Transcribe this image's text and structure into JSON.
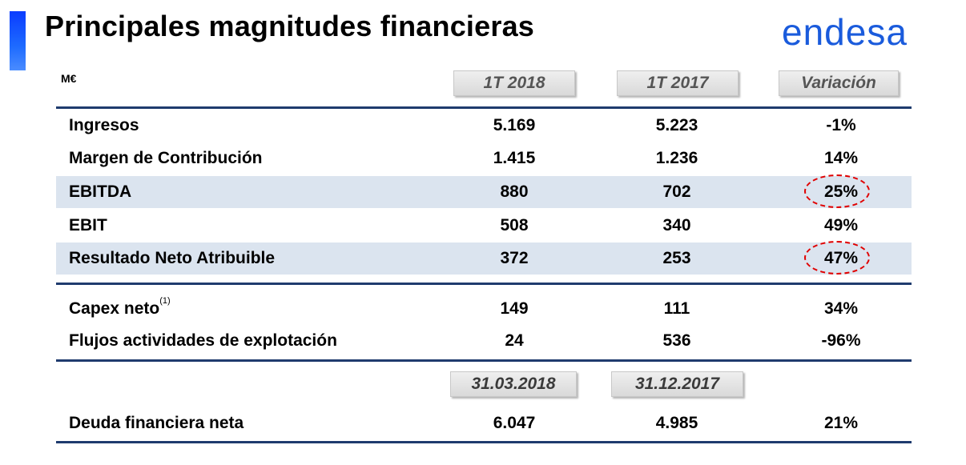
{
  "header": {
    "title": "Principales magnitudes financieras",
    "logo_text": "endesa",
    "logo_color": "#1a5bdc"
  },
  "table": {
    "unit": "M€",
    "columns": [
      "1T 2018",
      "1T 2017",
      "Variación"
    ],
    "rows": [
      {
        "label": "Ingresos",
        "v1": "5.169",
        "v2": "5.223",
        "var": "-1%"
      },
      {
        "label": "Margen de Contribución",
        "v1": "1.415",
        "v2": "1.236",
        "var": "14%"
      },
      {
        "label": "EBITDA",
        "v1": "880",
        "v2": "702",
        "var": "25%"
      },
      {
        "label": "EBIT",
        "v1": "508",
        "v2": "340",
        "var": "49%"
      },
      {
        "label": "Resultado Neto Atribuible",
        "v1": "372",
        "v2": "253",
        "var": "47%"
      }
    ],
    "rows2": [
      {
        "label": "Capex neto",
        "sup": "(1)",
        "v1": "149",
        "v2": "111",
        "var": "34%"
      },
      {
        "label": "Flujos actividades de explotación",
        "v1": "24",
        "v2": "536",
        "var": "-96%"
      }
    ],
    "date_columns": [
      "31.03.2018",
      "31.12.2017"
    ],
    "debt_row": {
      "label": "Deuda financiera neta",
      "v1": "6.047",
      "v2": "4.985",
      "var": "21%"
    }
  },
  "colors": {
    "rule": "#1f3b6e",
    "highlight_row": "#dbe4ef",
    "circle": "#e00000"
  }
}
